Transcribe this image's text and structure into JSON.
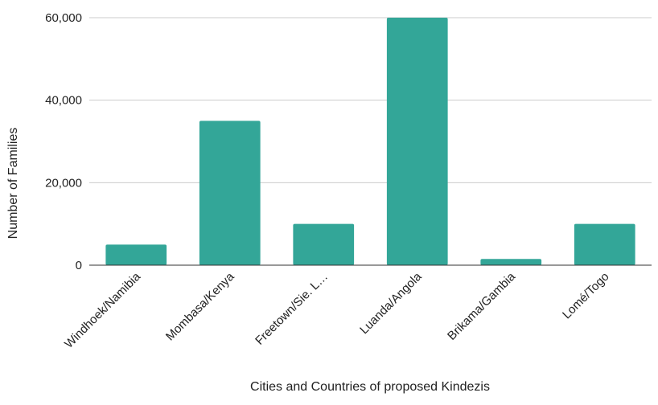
{
  "chart_data": {
    "type": "bar",
    "title": "",
    "xlabel": "Cities and Countries of proposed Kindezis",
    "ylabel": "Number of Families",
    "categories": [
      "Windhoek/Namibia",
      "Mombasa/Kenya",
      "Freetown/Sie. L…",
      "Luanda/Angola",
      "Brikama/Gambia",
      "Lomé/Togo"
    ],
    "values": [
      5000,
      35000,
      10000,
      60000,
      1500,
      10000
    ],
    "ylim": [
      0,
      60000
    ],
    "yticks": [
      0,
      20000,
      40000,
      60000
    ],
    "ytick_labels": [
      "0",
      "20,000",
      "40,000",
      "60,000"
    ],
    "grid": true,
    "bar_color": "#33a698",
    "gridline_color": "#cccccc",
    "baseline_color": "#333333"
  }
}
